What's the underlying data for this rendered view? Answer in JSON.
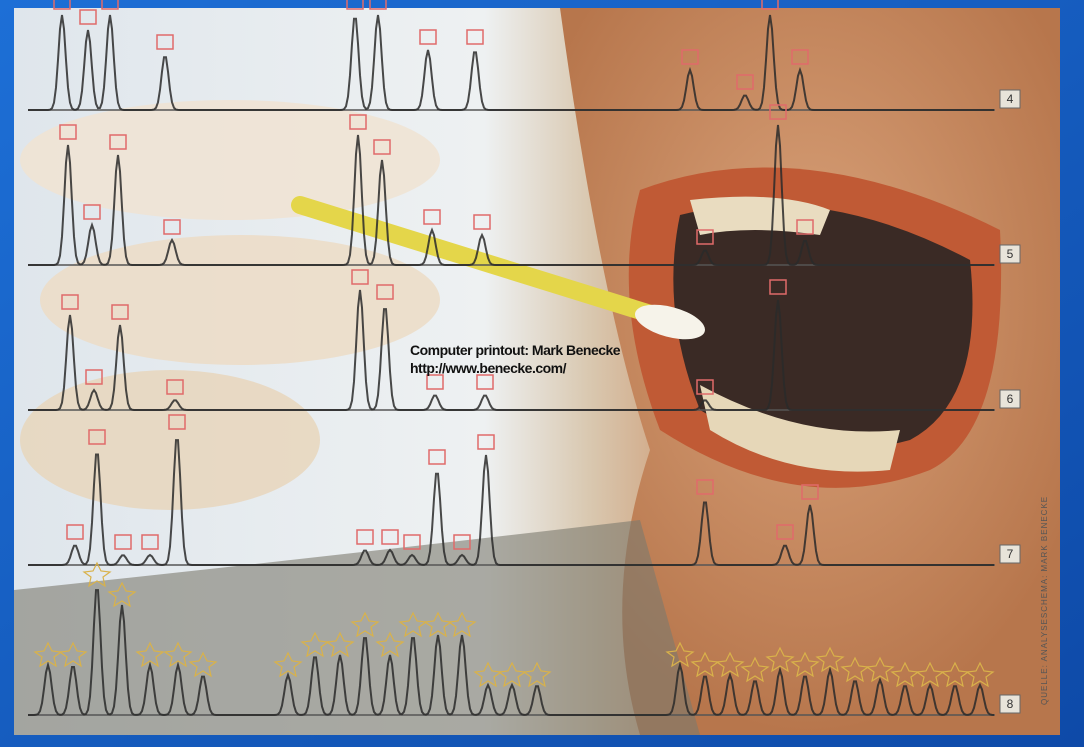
{
  "watermark": {
    "line1": "Computer printout: Mark Benecke",
    "line2": "http://www.benecke.com/"
  },
  "lanes": [
    "4",
    "5",
    "6",
    "7",
    "8"
  ],
  "source": "QUELLE: ANALYSESCHEMA: MARK BENECKE"
}
